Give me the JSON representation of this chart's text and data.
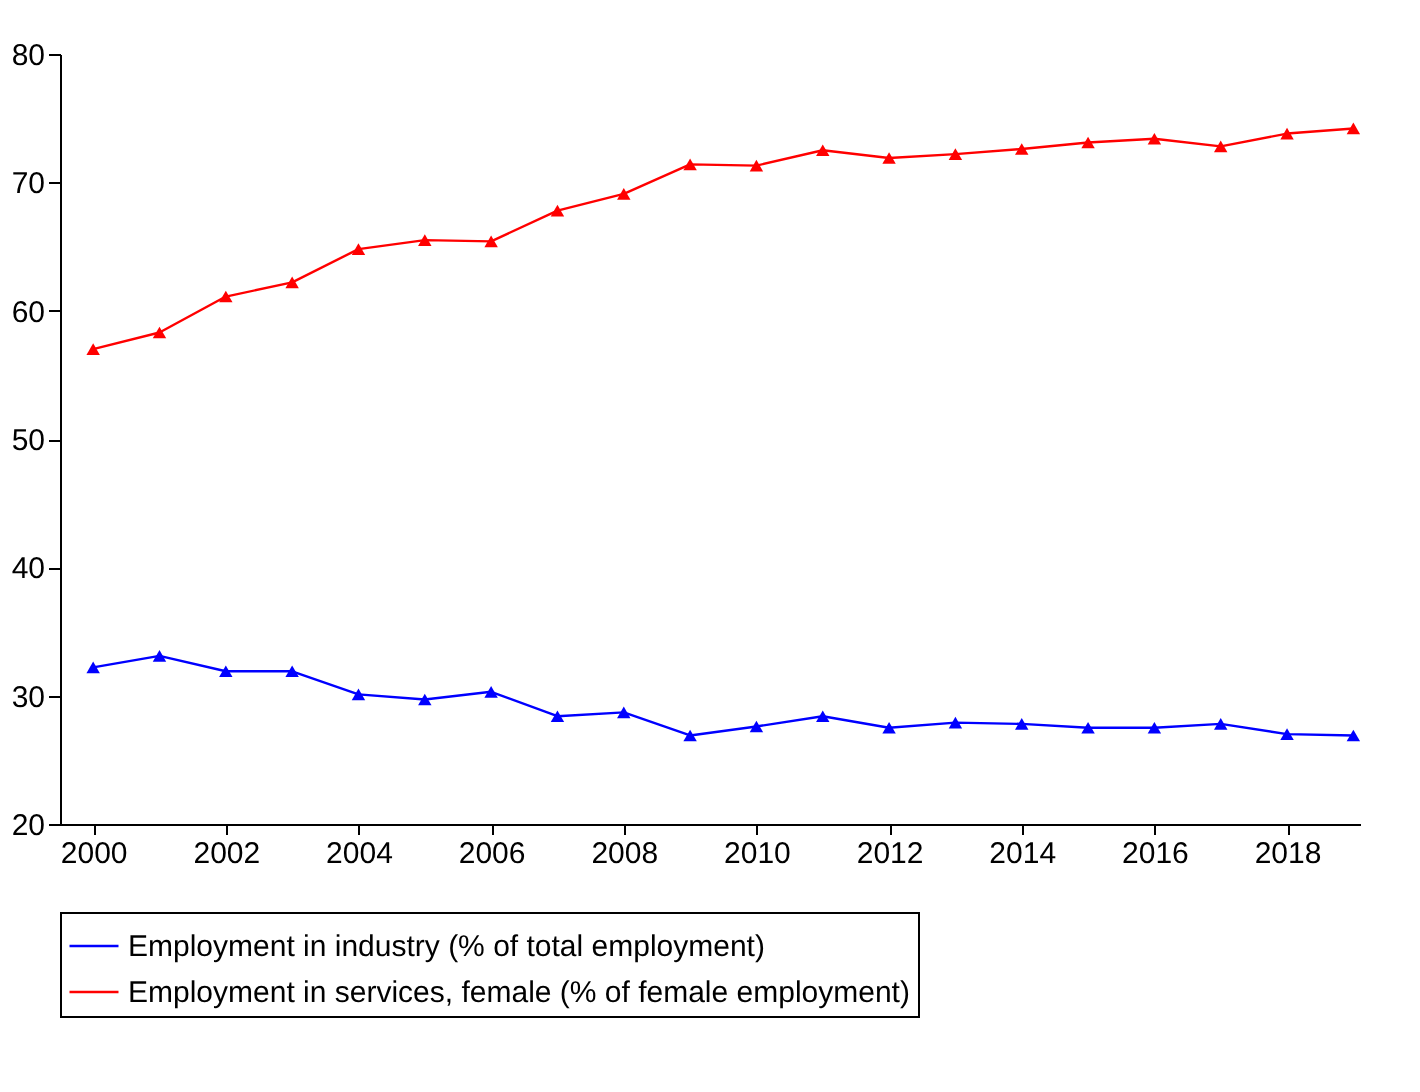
{
  "chart_data": {
    "type": "line",
    "x": [
      2000,
      2001,
      2002,
      2003,
      2004,
      2005,
      2006,
      2007,
      2008,
      2009,
      2010,
      2011,
      2012,
      2013,
      2014,
      2015,
      2016,
      2017,
      2018,
      2019
    ],
    "series": [
      {
        "name": "Employment in industry (% of total employment)",
        "color": "#0000ff",
        "values": [
          32.2,
          33.1,
          31.9,
          31.9,
          30.1,
          29.7,
          30.3,
          28.4,
          28.7,
          26.9,
          27.6,
          28.4,
          27.5,
          27.9,
          27.8,
          27.5,
          27.5,
          27.8,
          27.0,
          26.9
        ]
      },
      {
        "name": "Employment in services, female (% of female employment)",
        "color": "#ff0000",
        "values": [
          57.0,
          58.3,
          61.1,
          62.2,
          64.8,
          65.5,
          65.4,
          67.8,
          69.1,
          71.4,
          71.3,
          72.5,
          71.9,
          72.2,
          72.6,
          73.1,
          73.4,
          72.8,
          73.8,
          74.2
        ]
      }
    ],
    "xlim": [
      1999.5,
      2019.1
    ],
    "xticks": [
      2000,
      2002,
      2004,
      2006,
      2008,
      2010,
      2012,
      2014,
      2016,
      2018
    ],
    "ylim": [
      20,
      80
    ],
    "yticks": [
      20,
      30,
      40,
      50,
      60,
      70,
      80
    ],
    "grid": false,
    "legend": "bottom",
    "marker": "triangle",
    "line_style": "solid"
  }
}
